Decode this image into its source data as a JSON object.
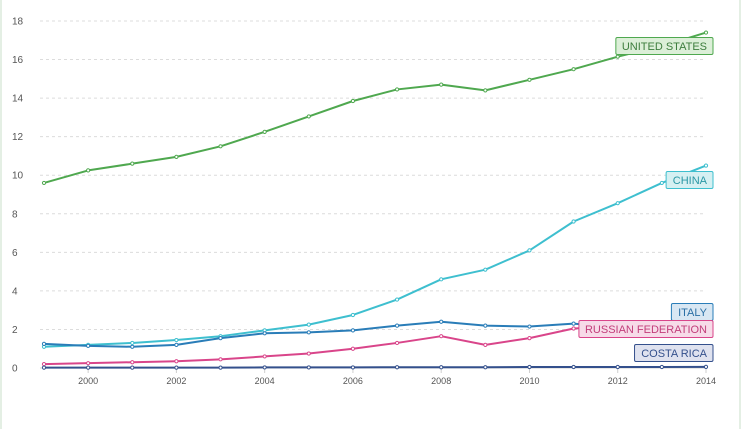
{
  "chart_data": {
    "type": "line",
    "title": "",
    "xlabel": "",
    "ylabel": "",
    "x": [
      1999,
      2000,
      2001,
      2002,
      2003,
      2004,
      2005,
      2006,
      2007,
      2008,
      2009,
      2010,
      2011,
      2012,
      2013,
      2014
    ],
    "xticks": [
      "2000",
      "2002",
      "2004",
      "2006",
      "2008",
      "2010",
      "2012",
      "2014"
    ],
    "yticks": [
      "0",
      "2",
      "4",
      "6",
      "8",
      "10",
      "12",
      "14",
      "16",
      "18"
    ],
    "xlim": [
      1999,
      2014
    ],
    "ylim": [
      0,
      18
    ],
    "grid": true,
    "series": [
      {
        "name": "UNITED STATES",
        "color": "#4fa84f",
        "label_fill": "#dcefd8",
        "label_text": "#3d7d3d",
        "values": [
          9.6,
          10.25,
          10.6,
          10.95,
          11.5,
          12.25,
          13.05,
          13.85,
          14.45,
          14.7,
          14.4,
          14.95,
          15.5,
          16.15,
          16.7,
          17.4
        ]
      },
      {
        "name": "CHINA",
        "color": "#3ebfcf",
        "label_fill": "#d5f0f2",
        "label_text": "#2a97a5",
        "values": [
          1.1,
          1.2,
          1.3,
          1.45,
          1.65,
          1.95,
          2.25,
          2.75,
          3.55,
          4.6,
          5.1,
          6.1,
          7.6,
          8.55,
          9.6,
          10.5
        ]
      },
      {
        "name": "ITALY",
        "color": "#2a7db8",
        "label_fill": "#d8e7f3",
        "label_text": "#2a6fa5",
        "values": [
          1.25,
          1.15,
          1.1,
          1.2,
          1.55,
          1.8,
          1.85,
          1.95,
          2.2,
          2.4,
          2.2,
          2.15,
          2.3,
          2.1,
          2.15,
          2.15
        ]
      },
      {
        "name": "RUSSIAN FEDERATION",
        "color": "#d9458a",
        "label_fill": "#f7dbe8",
        "label_text": "#c23d7a",
        "values": [
          0.2,
          0.25,
          0.3,
          0.35,
          0.45,
          0.6,
          0.75,
          1.0,
          1.3,
          1.65,
          1.2,
          1.55,
          2.05,
          2.15,
          2.1,
          2.05
        ]
      },
      {
        "name": "COSTA RICA",
        "color": "#34508c",
        "label_fill": "#dfe2ef",
        "label_text": "#34508c",
        "values": [
          0.02,
          0.02,
          0.02,
          0.02,
          0.02,
          0.03,
          0.03,
          0.03,
          0.04,
          0.04,
          0.04,
          0.05,
          0.05,
          0.05,
          0.05,
          0.06
        ]
      }
    ]
  }
}
